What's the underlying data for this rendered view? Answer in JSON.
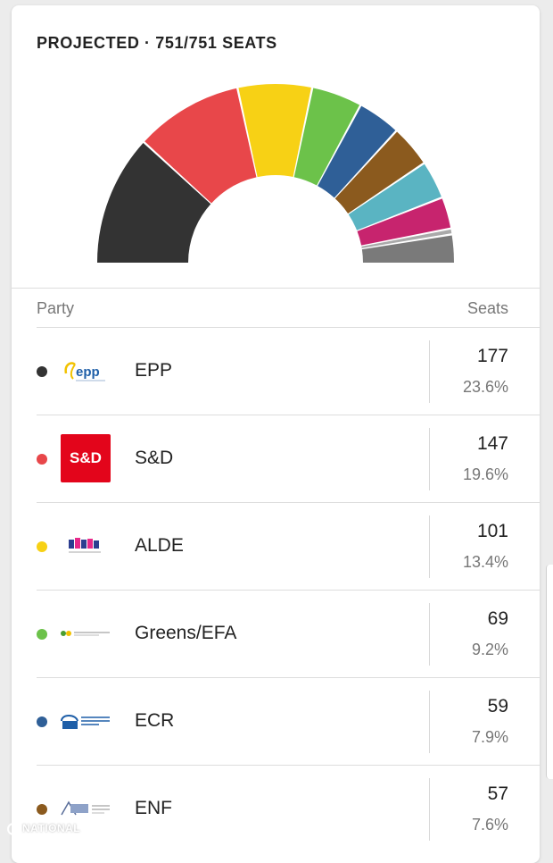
{
  "header": {
    "title": "PROJECTED · 751/751 SEATS"
  },
  "table": {
    "party_header": "Party",
    "seats_header": "Seats"
  },
  "rows": [
    {
      "party": "EPP",
      "seats": "177",
      "pct": "23.6%",
      "color": "#333333",
      "logo_icon": "epp-logo-icon"
    },
    {
      "party": "S&D",
      "seats": "147",
      "pct": "19.6%",
      "color": "#e8474a",
      "logo_icon": "sd-logo-icon",
      "logo_text": "S&D"
    },
    {
      "party": "ALDE",
      "seats": "101",
      "pct": "13.4%",
      "color": "#f7d115",
      "logo_icon": "alde-logo-icon"
    },
    {
      "party": "Greens/EFA",
      "seats": "69",
      "pct": "9.2%",
      "color": "#6cc24a",
      "logo_icon": "greens-logo-icon"
    },
    {
      "party": "ECR",
      "seats": "59",
      "pct": "7.9%",
      "color": "#2f5f97",
      "logo_icon": "ecr-logo-icon"
    },
    {
      "party": "ENF",
      "seats": "57",
      "pct": "7.6%",
      "color": "#8b5a1e",
      "logo_icon": "enf-logo-icon"
    }
  ],
  "chart_data": {
    "type": "pie",
    "title": "PROJECTED · 751/751 SEATS",
    "total": 751,
    "series": [
      {
        "name": "EPP",
        "value": 177,
        "color": "#333333"
      },
      {
        "name": "S&D",
        "value": 147,
        "color": "#e8474a"
      },
      {
        "name": "ALDE",
        "value": 101,
        "color": "#f7d115"
      },
      {
        "name": "Greens/EFA",
        "value": 69,
        "color": "#6cc24a"
      },
      {
        "value": 59,
        "color": "#2f5f97"
      },
      {
        "value": 57,
        "color": "#8b5a1e"
      },
      {
        "value": 52,
        "color": "#5ab4c2"
      },
      {
        "value": 43,
        "color": "#c7246e"
      },
      {
        "value": 8,
        "color": "#aaaaaa"
      },
      {
        "value": 38,
        "color": "#7a7a7a"
      }
    ]
  },
  "watermark": {
    "text": "NATIONAL"
  }
}
